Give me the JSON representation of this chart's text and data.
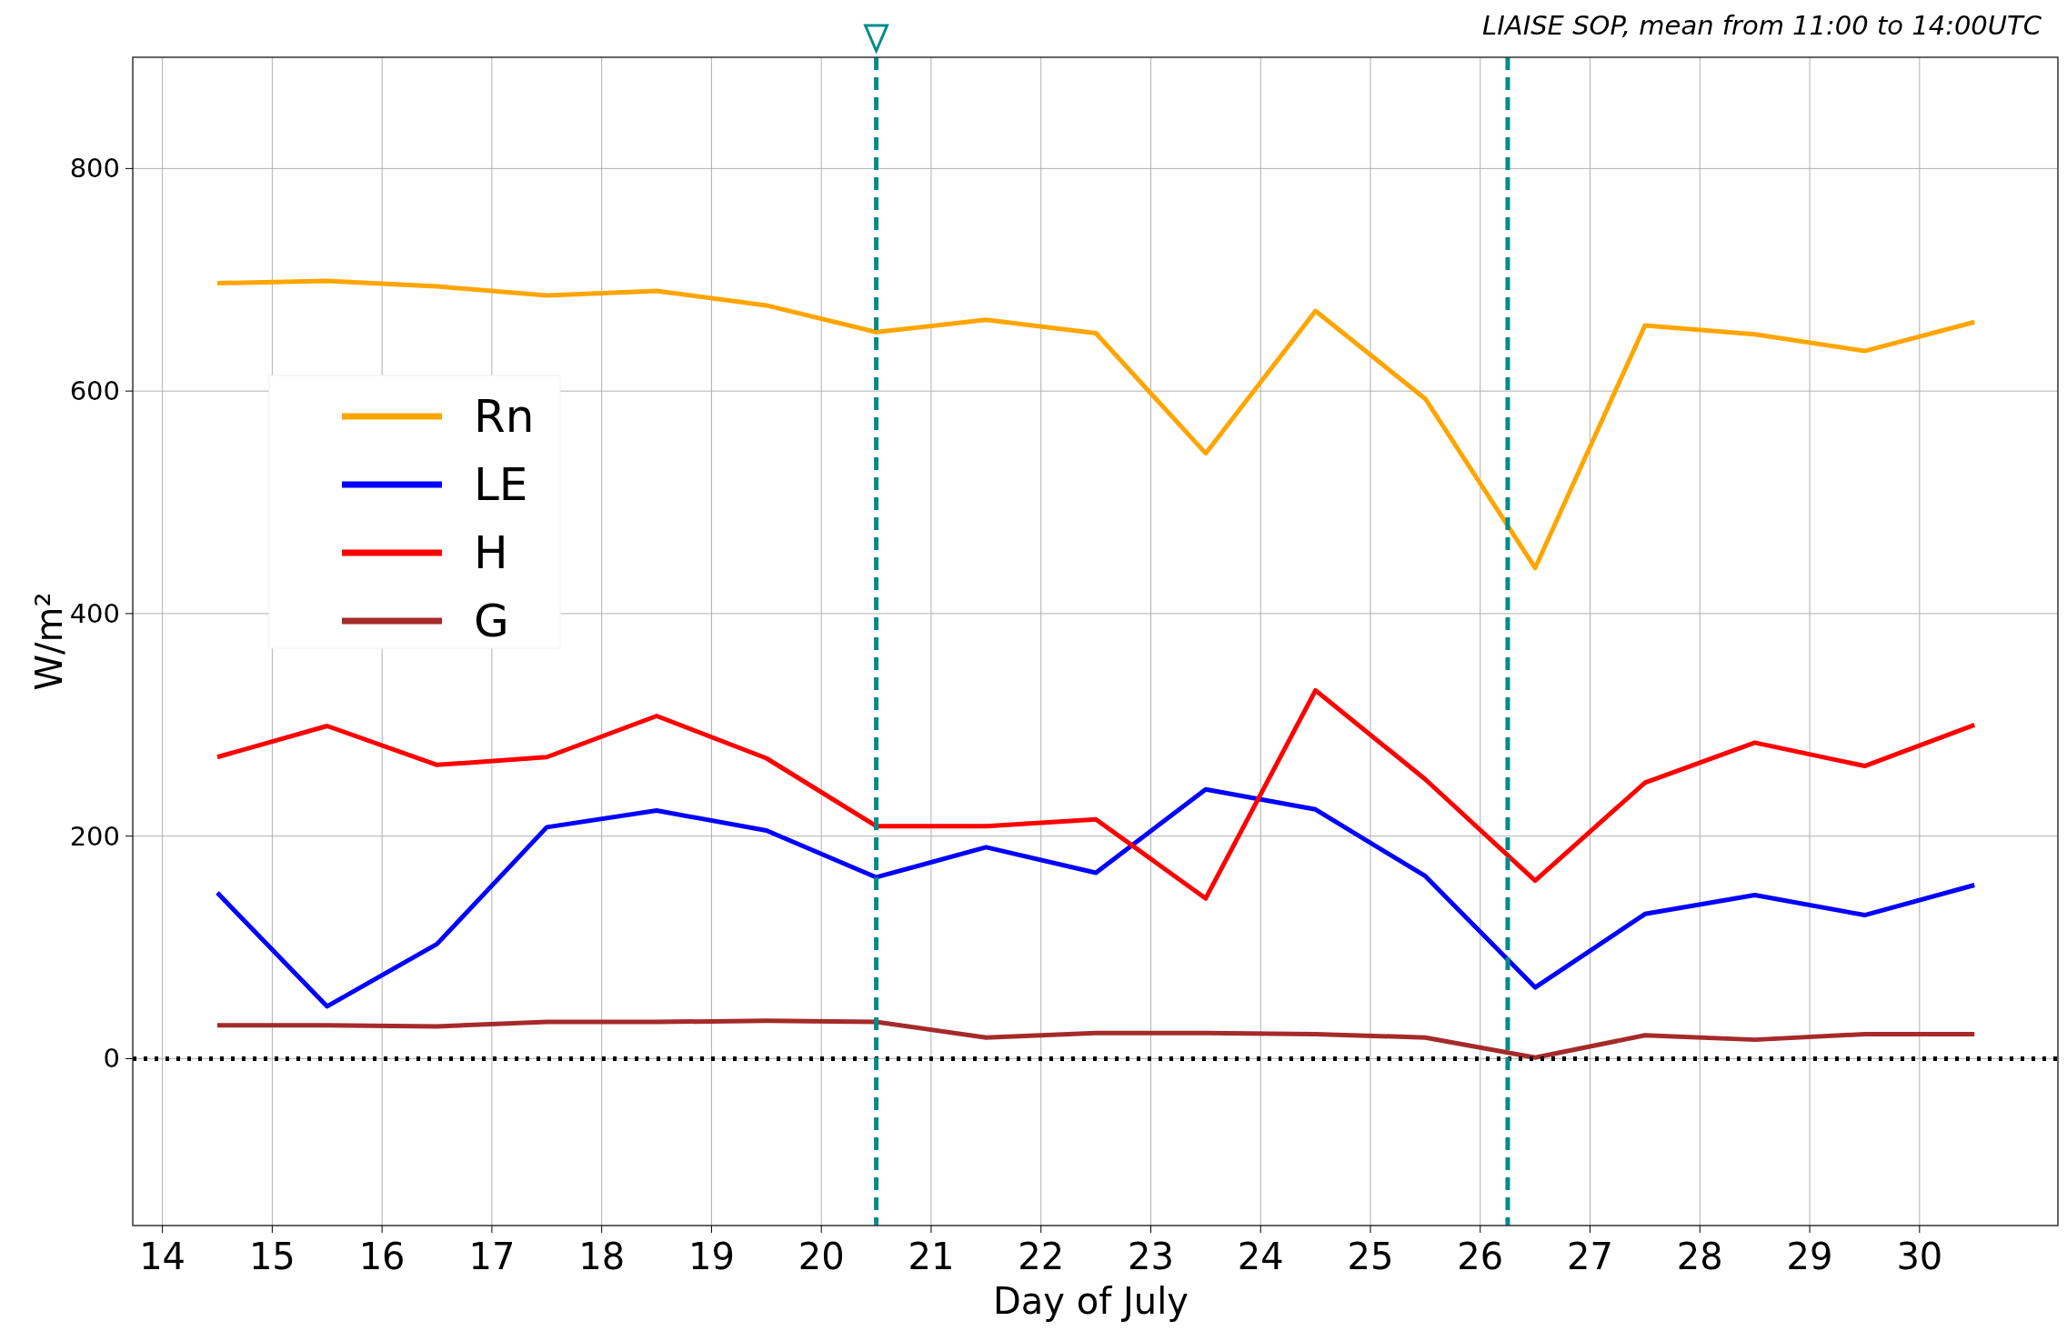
{
  "chart_data": {
    "type": "line",
    "subtitle": "LIAISE SOP, mean from 11:00 to 14:00UTC",
    "xlabel": "Day of July",
    "ylabel": "W/m²",
    "x": [
      14.5,
      15.5,
      16.5,
      17.5,
      18.5,
      19.5,
      20.5,
      21.5,
      22.5,
      23.5,
      24.5,
      25.5,
      26.5,
      27.5,
      28.5,
      29.5,
      30.5
    ],
    "series": [
      {
        "name": "Rn",
        "color": "#ffa500",
        "values": [
          697,
          699,
          694,
          686,
          690,
          677,
          653,
          664,
          652,
          544,
          672,
          593,
          441,
          659,
          651,
          636,
          662
        ]
      },
      {
        "name": "LE",
        "color": "#0000ff",
        "values": [
          149,
          47,
          103,
          208,
          223,
          205,
          163,
          190,
          167,
          242,
          224,
          164,
          64,
          130,
          147,
          129,
          156
        ]
      },
      {
        "name": "H",
        "color": "#ff0000",
        "values": [
          271,
          299,
          264,
          271,
          308,
          270,
          209,
          209,
          215,
          144,
          331,
          251,
          160,
          248,
          284,
          263,
          300
        ]
      },
      {
        "name": "G",
        "color": "#a52a2a",
        "values": [
          30,
          30,
          29,
          33,
          33,
          34,
          33,
          19,
          23,
          23,
          22,
          19,
          1,
          21,
          17,
          22,
          22
        ]
      }
    ],
    "xlim": [
      13.73,
      31.26
    ],
    "xticks": [
      14,
      15,
      16,
      17,
      18,
      19,
      20,
      21,
      22,
      23,
      24,
      25,
      26,
      27,
      28,
      29,
      30
    ],
    "ylim": [
      -150,
      900
    ],
    "yticks": [
      0,
      200,
      400,
      600,
      800
    ],
    "ref_lines": [
      {
        "axis": "y",
        "value": 0,
        "color": "#000000",
        "line_style": "dotted"
      },
      {
        "axis": "x",
        "value": 20.5,
        "color": "#008b8b",
        "line_style": "dashed"
      },
      {
        "axis": "x",
        "value": 26.25,
        "color": "#008b8b",
        "line_style": "dashed"
      }
    ],
    "grid": true,
    "legend": "top left",
    "line_style": "solid",
    "marker": "none"
  }
}
